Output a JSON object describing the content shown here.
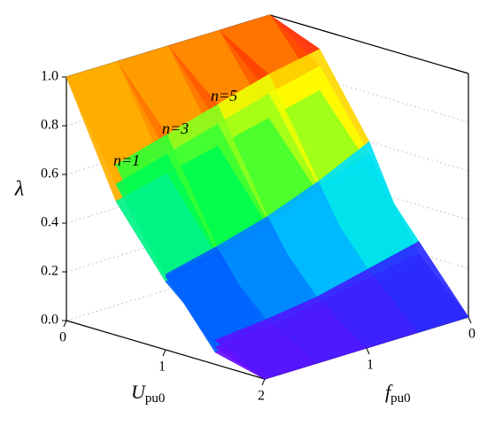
{
  "chart_data": {
    "type": "surface3d",
    "z_label": "λ",
    "x_label": "U",
    "x_label_sub": "pu0",
    "y_label": "f",
    "y_label_sub": "pu0",
    "x": [
      0,
      0.5,
      1,
      1.5,
      2
    ],
    "y": [
      0,
      0.5,
      1,
      1.5,
      2
    ],
    "xlim": [
      0,
      2
    ],
    "ylim": [
      0,
      2
    ],
    "zlim": [
      0,
      1
    ],
    "xticks": [
      0,
      1,
      2
    ],
    "yticks": [
      0,
      1
    ],
    "zticks": [
      {
        "value": 0,
        "label": "0.0"
      },
      {
        "value": 0.2,
        "label": "0.2"
      },
      {
        "value": 0.4,
        "label": "0.4"
      },
      {
        "value": 0.6,
        "label": "0.6"
      },
      {
        "value": 0.8,
        "label": "0.8"
      },
      {
        "value": 1,
        "label": "1.0"
      }
    ],
    "grid": true,
    "colormap": [
      "#8000ff",
      "#0040ff",
      "#00e0ff",
      "#00ff40",
      "#ffff00",
      "#ff9000",
      "#ff0000"
    ],
    "series": [
      {
        "name": "n=1",
        "values": [
          [
            1,
            0.75,
            0.5,
            0.25,
            0
          ],
          [
            1,
            0.7,
            0.45,
            0.2,
            0
          ],
          [
            1,
            0.65,
            0.38,
            0.15,
            0
          ],
          [
            1,
            0.6,
            0.32,
            0.12,
            0
          ],
          [
            1,
            0.55,
            0.28,
            0.1,
            0
          ]
        ]
      },
      {
        "name": "n=3",
        "values": [
          [
            1,
            0.85,
            0.55,
            0.2,
            0
          ],
          [
            1,
            0.8,
            0.48,
            0.16,
            0
          ],
          [
            1,
            0.74,
            0.4,
            0.12,
            0
          ],
          [
            1,
            0.68,
            0.34,
            0.09,
            0
          ],
          [
            1,
            0.62,
            0.3,
            0.07,
            0
          ]
        ]
      },
      {
        "name": "n=5",
        "values": [
          [
            1,
            0.92,
            0.6,
            0.15,
            0
          ],
          [
            1,
            0.88,
            0.5,
            0.12,
            0
          ],
          [
            1,
            0.82,
            0.42,
            0.09,
            0
          ],
          [
            1,
            0.76,
            0.36,
            0.07,
            0
          ],
          [
            1,
            0.7,
            0.31,
            0.05,
            0
          ]
        ]
      }
    ]
  }
}
